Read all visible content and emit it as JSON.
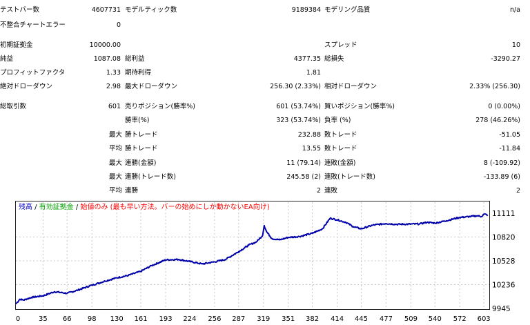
{
  "stats": {
    "test_bars_label": "テストバー数",
    "test_bars_value": "4607731",
    "ticks_modeled_label": "モデルティック数",
    "ticks_modeled_value": "9189384",
    "modeling_quality_label": "モデリング品質",
    "modeling_quality_value": "n/a",
    "mismatch_errors_label": "不整合チャートエラー",
    "mismatch_errors_value": "0",
    "initial_deposit_label": "初期証拠金",
    "initial_deposit_value": "10000.00",
    "spread_label": "スプレッド",
    "spread_value": "10",
    "net_profit_label": "純益",
    "net_profit_value": "1087.08",
    "gross_profit_label": "総利益",
    "gross_profit_value": "4377.35",
    "gross_loss_label": "総損失",
    "gross_loss_value": "-3290.27",
    "profit_factor_label": "プロフィットファクタ",
    "profit_factor_value": "1.33",
    "expected_payoff_label": "期待利得",
    "expected_payoff_value": "1.81",
    "abs_drawdown_label": "絶対ドローダウン",
    "abs_drawdown_value": "2.98",
    "max_drawdown_label": "最大ドローダウン",
    "max_drawdown_value": "256.30 (2.33%)",
    "rel_drawdown_label": "相対ドローダウン",
    "rel_drawdown_value": "2.33% (256.30)",
    "total_trades_label": "総取引数",
    "total_trades_value": "601",
    "short_positions_label": "売りポジション(勝率%)",
    "short_positions_value": "601 (53.74%)",
    "long_positions_label": "買いポジション(勝率%)",
    "long_positions_value": "0 (0.00%)",
    "win_rate_label": "勝率(%)",
    "win_rate_value": "323 (53.74%)",
    "loss_rate_label": "負率 (%)",
    "loss_rate_value": "278 (46.26%)",
    "largest_prefix": "最大",
    "average_prefix": "平均",
    "largest_win_label": "勝トレード",
    "largest_win_value": "232.88",
    "largest_loss_label": "敗トレード",
    "largest_loss_value": "-51.05",
    "avg_win_label": "勝トレード",
    "avg_win_value": "13.55",
    "avg_loss_label": "敗トレード",
    "avg_loss_value": "-11.84",
    "max_consec_wins_money_label": "連勝(金額)",
    "max_consec_wins_money_value": "11 (79.14)",
    "max_consec_losses_money_label": "連敗(金額)",
    "max_consec_losses_money_value": "8 (-109.92)",
    "max_consec_wins_trades_label": "連勝(トレード数)",
    "max_consec_wins_trades_value": "245.58 (2)",
    "max_consec_losses_trades_label": "連敗(トレード数)",
    "max_consec_losses_trades_value": "-133.89 (6)",
    "avg_consec_wins_label": "連勝",
    "avg_consec_wins_value": "2",
    "avg_consec_losses_label": "連敗",
    "avg_consec_losses_value": "2"
  },
  "legend": {
    "balance": "残高",
    "sep1": " / ",
    "equity": "有効証拠金",
    "sep2": " / ",
    "method": "始値のみ (最も早い方法。バーの始めにしか動かないEA向け)",
    "balance_color": "#0000cc",
    "equity_color": "#00a000",
    "method_color": "#ff0000"
  },
  "chart_data": {
    "type": "line",
    "title": "",
    "xlabel": "",
    "ylabel": "",
    "x_ticks": [
      "0",
      "35",
      "66",
      "98",
      "130",
      "161",
      "193",
      "224",
      "256",
      "287",
      "319",
      "351",
      "382",
      "414",
      "445",
      "477",
      "509",
      "540",
      "572",
      "603"
    ],
    "y_ticks": [
      "11111",
      "10820",
      "10528",
      "10236",
      "9945"
    ],
    "xlim": [
      0,
      610
    ],
    "ylim": [
      9945,
      11111
    ],
    "grid": true,
    "series": [
      {
        "color": "#0000aa",
        "x": [
          0,
          5,
          10,
          20,
          35,
          50,
          66,
          80,
          98,
          115,
          130,
          145,
          161,
          175,
          193,
          210,
          224,
          240,
          256,
          270,
          287,
          300,
          310,
          318,
          320,
          323,
          330,
          340,
          351,
          365,
          382,
          395,
          405,
          414,
          425,
          435,
          445,
          460,
          477,
          490,
          509,
          520,
          530,
          540,
          555,
          572,
          585,
          595,
          600,
          603,
          608
        ],
        "y": [
          10000,
          10058,
          10048,
          10080,
          10100,
          10150,
          10130,
          10170,
          10230,
          10280,
          10320,
          10350,
          10400,
          10470,
          10540,
          10545,
          10520,
          10490,
          10515,
          10545,
          10640,
          10720,
          10760,
          10840,
          10960,
          10885,
          10800,
          10785,
          10815,
          10825,
          10865,
          10920,
          11050,
          11030,
          11000,
          10945,
          10920,
          10965,
          10985,
          10975,
          10978,
          10980,
          11000,
          10990,
          11020,
          11060,
          11070,
          11080,
          11070,
          11100,
          11090
        ]
      }
    ]
  }
}
